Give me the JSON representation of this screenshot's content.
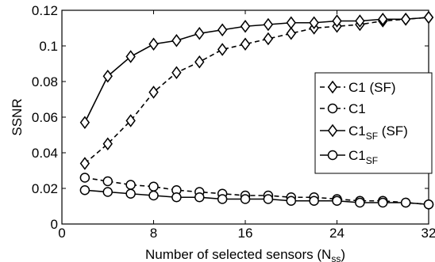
{
  "chart_data": {
    "type": "line",
    "title": "",
    "xlabel": "Number of selected sensors (N",
    "xlabel_sub": "ss",
    "xlabel_close": ")",
    "ylabel": "SSNR",
    "xlim": [
      0,
      32
    ],
    "ylim": [
      0,
      0.12
    ],
    "xticks": [
      0,
      8,
      16,
      24,
      32
    ],
    "yticks": [
      0,
      0.02,
      0.04,
      0.06,
      0.08,
      0.1,
      0.12
    ],
    "ytick_labels": [
      "0",
      "0.02",
      "0.04",
      "0.06",
      "0.08",
      "0.1",
      "0.12"
    ],
    "grid": false,
    "legend_position": "right",
    "x": [
      2,
      4,
      6,
      8,
      10,
      12,
      14,
      16,
      18,
      20,
      22,
      24,
      26,
      28,
      30,
      32
    ],
    "series": [
      {
        "name": "C1 (SF)",
        "name_main": "C1 (SF)",
        "name_sub": "",
        "name_suffix": "",
        "line": "dashed",
        "marker": "diamond",
        "values": [
          0.034,
          0.045,
          0.058,
          0.074,
          0.085,
          0.091,
          0.098,
          0.101,
          0.104,
          0.107,
          0.11,
          0.111,
          0.112,
          0.114,
          0.115,
          0.116
        ]
      },
      {
        "name": "C1",
        "name_main": "C1",
        "name_sub": "",
        "name_suffix": "",
        "line": "dashed",
        "marker": "circle",
        "values": [
          0.026,
          0.024,
          0.022,
          0.021,
          0.019,
          0.018,
          0.017,
          0.016,
          0.016,
          0.015,
          0.015,
          0.014,
          0.013,
          0.013,
          0.012,
          0.011
        ]
      },
      {
        "name": "C1SF (SF)",
        "name_main": "C1",
        "name_sub": "SF",
        "name_suffix": " (SF)",
        "line": "solid",
        "marker": "diamond",
        "values": [
          0.057,
          0.083,
          0.094,
          0.101,
          0.103,
          0.107,
          0.109,
          0.111,
          0.112,
          0.113,
          0.113,
          0.114,
          0.114,
          0.115,
          0.115,
          0.116
        ]
      },
      {
        "name": "C1SF",
        "name_main": "C1",
        "name_sub": "SF",
        "name_suffix": "",
        "line": "solid",
        "marker": "circle",
        "values": [
          0.019,
          0.018,
          0.017,
          0.016,
          0.015,
          0.015,
          0.014,
          0.014,
          0.014,
          0.013,
          0.013,
          0.013,
          0.012,
          0.012,
          0.012,
          0.011
        ]
      }
    ]
  }
}
